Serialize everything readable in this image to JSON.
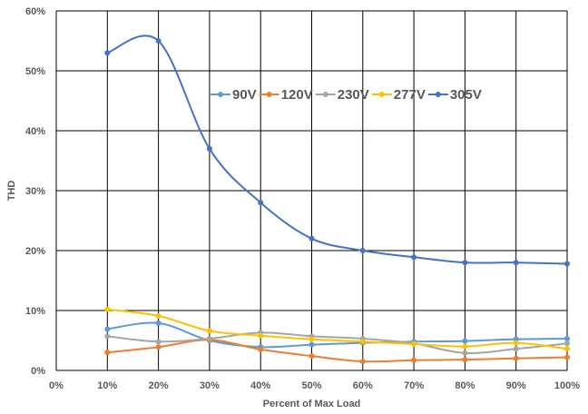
{
  "chart_data": {
    "type": "line",
    "title": "",
    "xlabel": "Percent of Max Load",
    "ylabel": "THD",
    "x_ticks": [
      "0%",
      "10%",
      "20%",
      "30%",
      "40%",
      "50%",
      "60%",
      "70%",
      "80%",
      "90%",
      "100%"
    ],
    "y_ticks": [
      "0%",
      "10%",
      "20%",
      "30%",
      "40%",
      "50%",
      "60%"
    ],
    "ylim": [
      0,
      60
    ],
    "xlim": [
      0,
      100
    ],
    "grid": true,
    "legend_position": "top-right",
    "x": [
      10,
      20,
      30,
      40,
      50,
      60,
      70,
      80,
      90,
      100
    ],
    "series": [
      {
        "name": "90V",
        "color": "#5B9BD5",
        "values": [
          6.9,
          7.9,
          5.0,
          3.9,
          4.3,
          4.6,
          4.8,
          4.9,
          5.2,
          5.3
        ]
      },
      {
        "name": "120V",
        "color": "#ED7D31",
        "values": [
          3.0,
          3.9,
          5.1,
          3.5,
          2.4,
          1.5,
          1.7,
          1.8,
          2.0,
          2.2
        ]
      },
      {
        "name": "230V",
        "color": "#A5A5A5",
        "values": [
          5.7,
          4.8,
          5.3,
          6.3,
          5.7,
          5.3,
          4.5,
          2.9,
          3.6,
          4.5
        ]
      },
      {
        "name": "277V",
        "color": "#FFC000",
        "values": [
          10.2,
          9.1,
          6.6,
          5.8,
          5.2,
          4.8,
          4.4,
          4.0,
          4.6,
          3.6
        ]
      },
      {
        "name": "305V",
        "color": "#4472C4",
        "values": [
          53.0,
          55.0,
          37.0,
          28.0,
          22.0,
          20.0,
          18.9,
          18.0,
          18.0,
          17.8
        ]
      }
    ]
  }
}
